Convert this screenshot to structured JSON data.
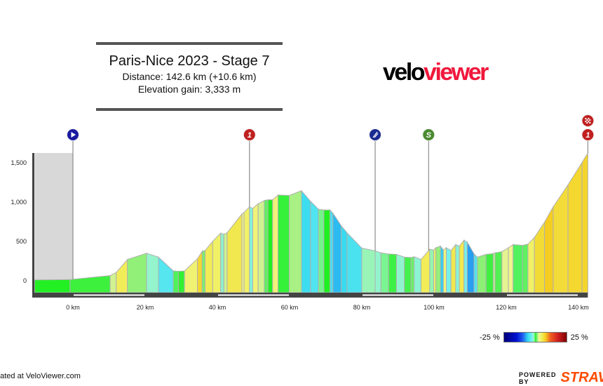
{
  "header": {
    "title": "Paris-Nice 2023 - Stage 7",
    "distance": "Distance: 142.6 km (+10.6 km)",
    "elevation_gain": "Elevation gain: 3,333 m"
  },
  "logo": {
    "part1": "velo",
    "part2": "viewer"
  },
  "footer": {
    "credit": "eated at VeloViewer.com",
    "powered_by": "POWERED BY",
    "strava": "STRAVA"
  },
  "colors": {
    "neutral_zone": "#d8d8d8",
    "axis": "#444444",
    "outline": "#b0b0b0"
  },
  "chart_data": {
    "type": "area",
    "title": "",
    "xlabel": "",
    "ylabel": "",
    "xlim": [
      -10.6,
      142.6
    ],
    "ylim": [
      -160,
      1625
    ],
    "grid": false,
    "x_ticks": [
      {
        "v": 0,
        "label": "0 km"
      },
      {
        "v": 20,
        "label": "20 km"
      },
      {
        "v": 40,
        "label": "40 km"
      },
      {
        "v": 60,
        "label": "60 km"
      },
      {
        "v": 80,
        "label": "80 km"
      },
      {
        "v": 100,
        "label": "100 km"
      },
      {
        "v": 120,
        "label": "120 km"
      },
      {
        "v": 140,
        "label": "140 km"
      }
    ],
    "y_ticks": [
      {
        "v": 0,
        "label": "0"
      },
      {
        "v": 500,
        "label": "500"
      },
      {
        "v": 1000,
        "label": "1,000"
      },
      {
        "v": 1500,
        "label": "1,500"
      }
    ],
    "neutral_zone_km": [
      -10.6,
      0
    ],
    "profile": {
      "km": [
        -10.6,
        -0.8,
        10.3,
        12,
        15.1,
        20.4,
        23.7,
        27.8,
        29.2,
        30.9,
        34.5,
        35.8,
        36.6,
        38.7,
        40.9,
        41.8,
        42.7,
        46.8,
        47.4,
        48.9,
        49.8,
        51.3,
        53,
        54,
        55.3,
        56.8,
        59.9,
        63.3,
        65.8,
        68,
        69.5,
        71.2,
        72,
        74.3,
        75.9,
        80,
        83.7,
        85.3,
        87.4,
        89.6,
        91.8,
        93.6,
        94.5,
        96.4,
        98.8,
        99.9,
        100.5,
        101.8,
        102.6,
        103.4,
        104.7,
        106,
        107,
        108.3,
        109.2,
        111.1,
        112,
        114.4,
        116.4,
        116.9,
        118.8,
        120.6,
        121.9,
        124.5,
        126,
        127.8,
        130.6,
        133,
        137.1,
        141,
        142.6
      ],
      "elevation": [
        10,
        15,
        65,
        105,
        270,
        350,
        300,
        125,
        120,
        125,
        280,
        375,
        385,
        500,
        605,
        590,
        610,
        850,
        870,
        940,
        920,
        980,
        1020,
        1030,
        1030,
        1090,
        1085,
        1145,
        1010,
        910,
        900,
        900,
        860,
        700,
        610,
        415,
        380,
        355,
        340,
        335,
        300,
        295,
        305,
        270,
        400,
        390,
        420,
        440,
        390,
        420,
        385,
        460,
        440,
        515,
        490,
        340,
        300,
        335,
        345,
        355,
        370,
        420,
        460,
        450,
        465,
        550,
        745,
        940,
        1220,
        1505,
        1625
      ]
    },
    "markers": [
      {
        "km": 0,
        "type": "start",
        "icon": "play-icon",
        "label": "",
        "color": "#1a1aa0"
      },
      {
        "km": 48.9,
        "type": "kom",
        "icon": "kom-category-icon",
        "label": "1",
        "color": "#c02020"
      },
      {
        "km": 83.7,
        "type": "feed",
        "icon": "feed-zone-icon",
        "label": "",
        "color": "#1a2a90"
      },
      {
        "km": 98.5,
        "type": "sprint",
        "icon": "sprint-icon",
        "label": "S",
        "color": "#4a8a30"
      },
      {
        "km": 142.6,
        "type": "kom",
        "icon": "kom-category-icon",
        "label": "1",
        "color": "#c02020"
      },
      {
        "km": 142.6,
        "type": "finish",
        "icon": "checkered-flag-icon",
        "label": "",
        "color": "#c02020"
      }
    ],
    "gradient_scale": {
      "min_label": "-25 %",
      "max_label": "25 %",
      "stops": [
        [
          -25,
          "#00007a"
        ],
        [
          -15,
          "#0010d0"
        ],
        [
          -10,
          "#2060f0"
        ],
        [
          -6,
          "#30d8f0"
        ],
        [
          -3,
          "#70f0f0"
        ],
        [
          -1,
          "#a0f5c0"
        ],
        [
          0,
          "#20f020"
        ],
        [
          1,
          "#60f060"
        ],
        [
          2,
          "#c0f090"
        ],
        [
          3,
          "#f0f590"
        ],
        [
          5,
          "#f0f060"
        ],
        [
          8,
          "#f5d020"
        ],
        [
          12,
          "#f06020"
        ],
        [
          18,
          "#d02020"
        ],
        [
          25,
          "#800000"
        ]
      ]
    }
  }
}
